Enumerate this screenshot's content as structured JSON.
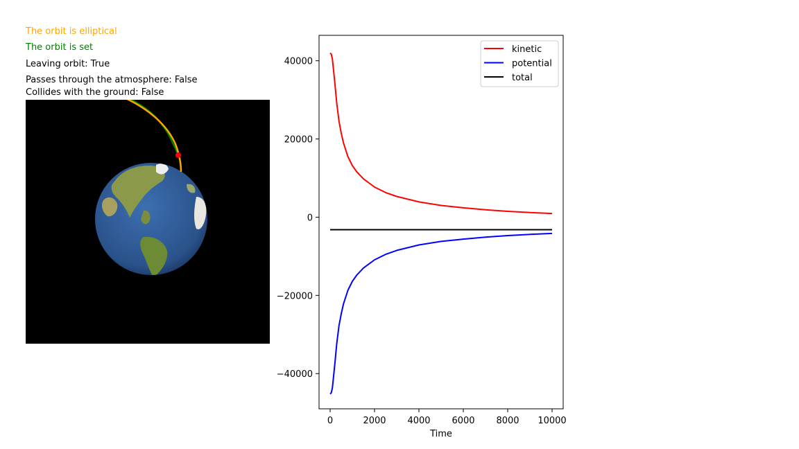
{
  "status": {
    "elliptical": {
      "text": "The orbit is elliptical",
      "color": "#ffa500"
    },
    "set": {
      "text": "The orbit is set",
      "color": "#008000"
    },
    "leaving": {
      "text": "Leaving orbit: True",
      "color": "#000000"
    },
    "atmosphere": {
      "text": "Passes through the atmosphere: False",
      "color": "#000000"
    },
    "ground": {
      "text": "Collides with the ground: False",
      "color": "#000000"
    }
  },
  "simulation": {
    "colors": {
      "background": "#000000",
      "orbit_elliptical": "#ffa500",
      "orbit_set": "#008000",
      "satellite": "#ff0000",
      "ocean": "#2f5f9e",
      "land": "#6f8f3a"
    }
  },
  "chart_data": {
    "type": "line",
    "title": "",
    "xlabel": "Time",
    "ylabel": "",
    "xlim": [
      -500,
      10500
    ],
    "ylim": [
      -49000,
      46500
    ],
    "x_ticks": [
      0,
      2000,
      4000,
      6000,
      8000,
      10000
    ],
    "y_ticks": [
      -40000,
      -20000,
      0,
      20000,
      40000
    ],
    "x_tick_labels": [
      "0",
      "2000",
      "4000",
      "6000",
      "8000",
      "10000"
    ],
    "y_tick_labels": [
      "−40000",
      "−20000",
      "0",
      "20000",
      "40000"
    ],
    "legend": "top-right",
    "grid": false,
    "x": [
      0,
      50,
      100,
      200,
      300,
      400,
      500,
      600,
      800,
      1000,
      1200,
      1500,
      2000,
      2500,
      3000,
      4000,
      5000,
      6000,
      7000,
      8000,
      9000,
      10000
    ],
    "series": [
      {
        "name": "kinetic",
        "color": "#ff0000",
        "values": [
          42000,
          41700,
          40500,
          35000,
          29000,
          24500,
          21500,
          19000,
          15500,
          13200,
          11600,
          9800,
          7700,
          6300,
          5300,
          3900,
          3000,
          2400,
          1900,
          1500,
          1200,
          950
        ]
      },
      {
        "name": "potential",
        "color": "#0000ff",
        "values": [
          -45200,
          -44900,
          -43700,
          -38200,
          -32200,
          -27700,
          -24700,
          -22200,
          -18700,
          -16400,
          -14800,
          -13000,
          -10900,
          -9500,
          -8500,
          -7100,
          -6200,
          -5600,
          -5100,
          -4700,
          -4400,
          -4150
        ]
      },
      {
        "name": "total",
        "color": "#000000",
        "values": [
          -3200,
          -3200,
          -3200,
          -3200,
          -3200,
          -3200,
          -3200,
          -3200,
          -3200,
          -3200,
          -3200,
          -3200,
          -3200,
          -3200,
          -3200,
          -3200,
          -3200,
          -3200,
          -3200,
          -3200,
          -3200,
          -3200
        ]
      }
    ]
  }
}
